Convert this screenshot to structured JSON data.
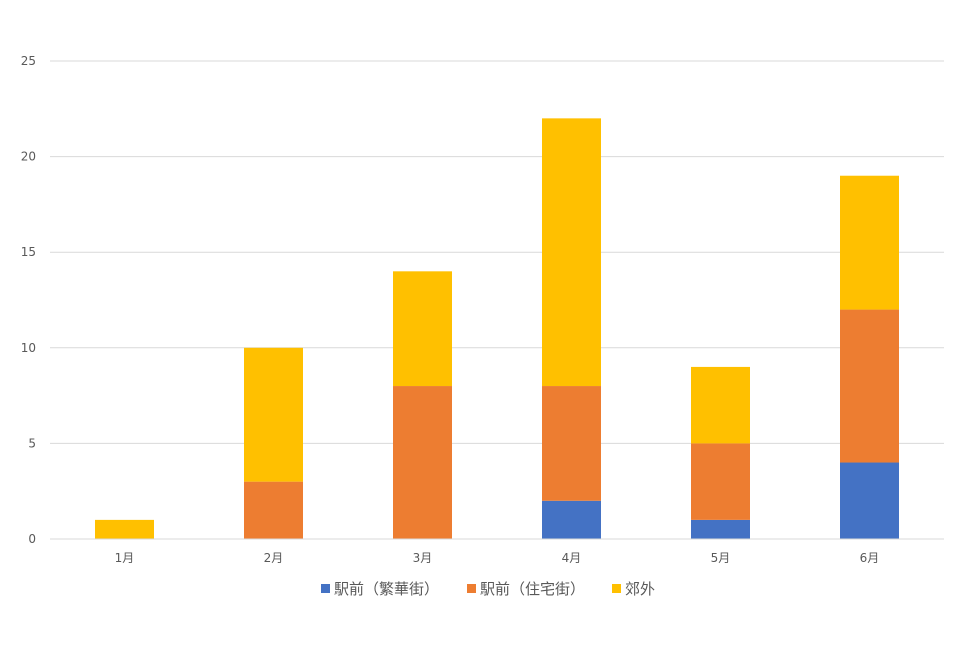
{
  "chart_data": {
    "type": "bar",
    "stacked": true,
    "categories": [
      "1月",
      "2月",
      "3月",
      "4月",
      "5月",
      "6月"
    ],
    "series": [
      {
        "name": "駅前（繁華街）",
        "color": "#4472c4",
        "values": [
          0,
          0,
          0,
          2,
          1,
          4
        ]
      },
      {
        "name": "駅前（住宅街）",
        "color": "#ed7d31",
        "values": [
          0,
          3,
          8,
          6,
          4,
          8
        ]
      },
      {
        "name": "郊外",
        "color": "#ffc000",
        "values": [
          1,
          7,
          6,
          14,
          4,
          7
        ]
      }
    ],
    "ylim": [
      0,
      25
    ],
    "yticks": [
      "0",
      "5",
      "10",
      "15",
      "20",
      "25"
    ],
    "grid": true,
    "legend_position": "bottom"
  }
}
